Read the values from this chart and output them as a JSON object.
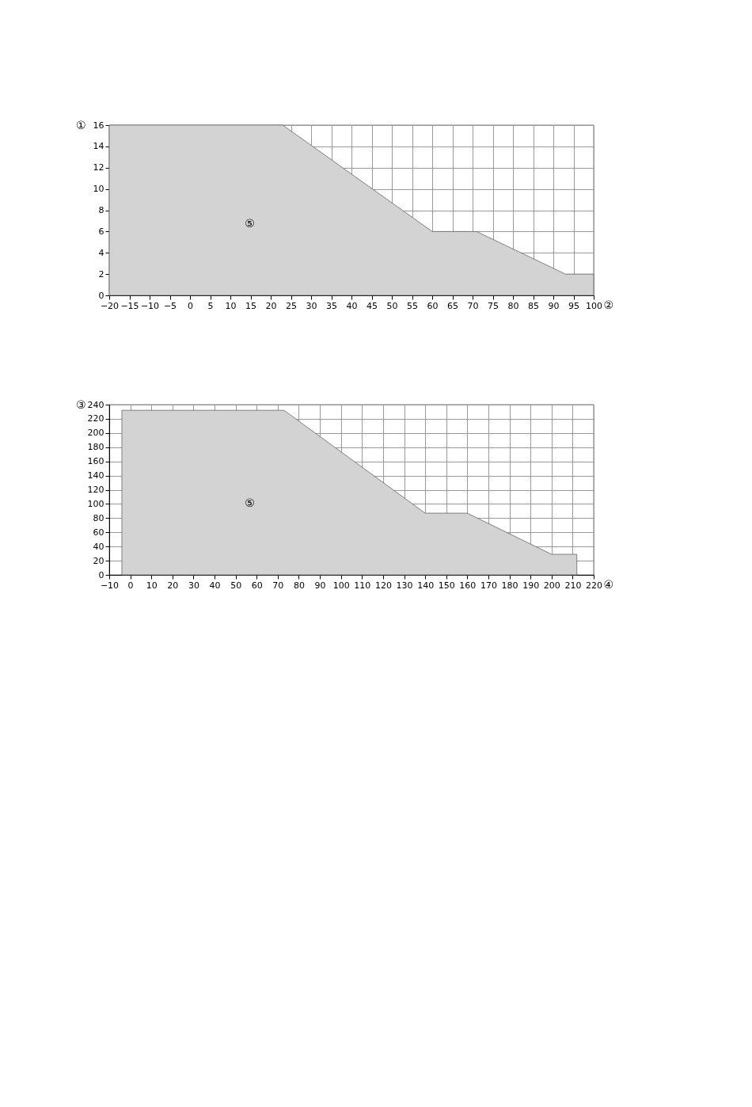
{
  "chart_data": [
    {
      "type": "area",
      "xlabel": "②",
      "ylabel": "①",
      "x": [
        -20,
        23,
        60,
        71,
        93,
        100
      ],
      "series": [
        {
          "color": "#d3d3d3",
          "values": [
            16,
            16,
            6,
            6,
            2,
            2
          ]
        }
      ],
      "xlim": [
        -20,
        100
      ],
      "xticks": [
        -20,
        -15,
        -10,
        -5,
        0,
        5,
        10,
        15,
        20,
        25,
        30,
        35,
        40,
        45,
        50,
        55,
        60,
        65,
        70,
        75,
        80,
        85,
        90,
        95,
        100
      ],
      "ylim": [
        0,
        16
      ],
      "yticks": [
        0,
        2,
        4,
        6,
        8,
        10,
        12,
        14,
        16
      ],
      "grid": true,
      "annotations": [
        "⑤"
      ]
    },
    {
      "type": "area",
      "xlabel": "④",
      "ylabel": "③",
      "x": [
        -4,
        73,
        140,
        160,
        200,
        212
      ],
      "series": [
        {
          "color": "#d3d3d3",
          "values": [
            232,
            232,
            87,
            87,
            29,
            29
          ]
        }
      ],
      "xlim": [
        -10,
        220
      ],
      "xticks": [
        -10,
        0,
        10,
        20,
        30,
        40,
        50,
        60,
        70,
        80,
        90,
        100,
        110,
        120,
        130,
        140,
        150,
        160,
        170,
        180,
        190,
        200,
        210,
        220
      ],
      "ylim": [
        0,
        240
      ],
      "yticks": [
        0,
        20,
        40,
        60,
        80,
        100,
        120,
        140,
        160,
        180,
        200,
        220,
        240
      ],
      "grid": true,
      "annotations": [
        "⑤"
      ]
    }
  ]
}
